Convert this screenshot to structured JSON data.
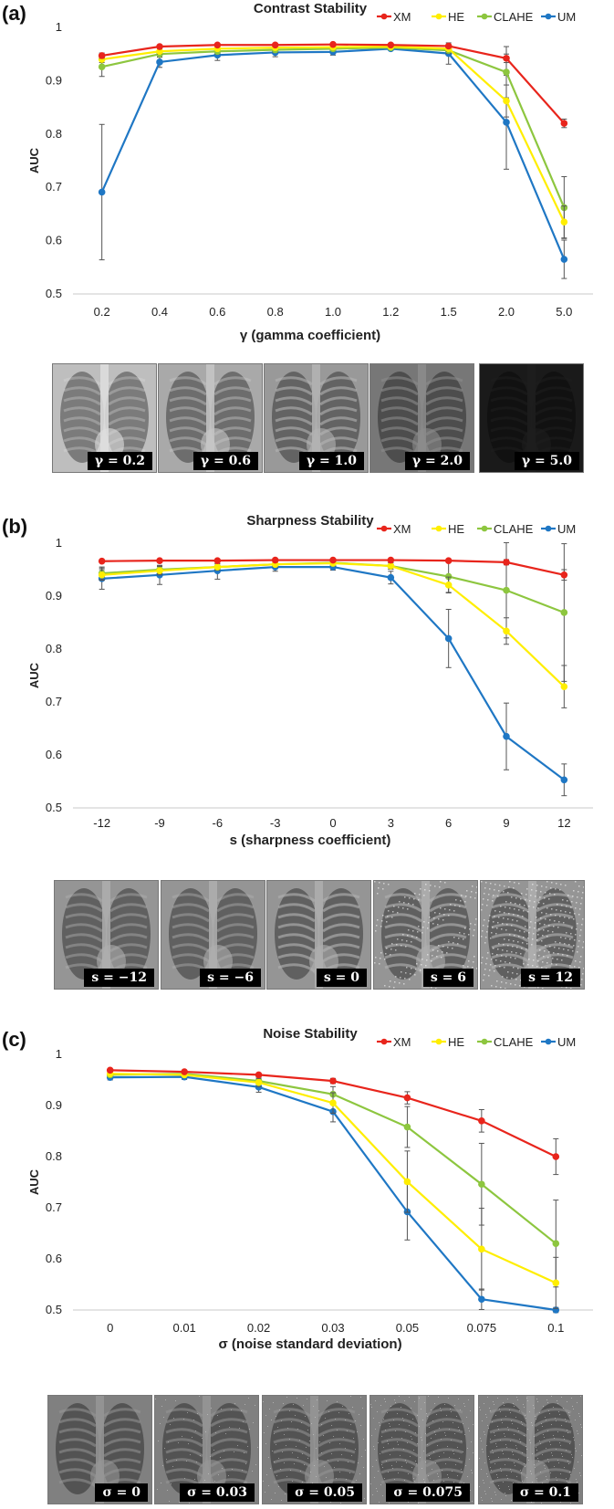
{
  "series_names": [
    "XM",
    "HE",
    "CLAHE",
    "UM"
  ],
  "series_colors": [
    "#e8251c",
    "#ffee00",
    "#8dc63f",
    "#1f77c4"
  ],
  "chart_data": [
    {
      "type": "line",
      "panel_label": "(a)",
      "title": "Contrast Stability",
      "xlabel": "γ (gamma coefficient)",
      "ylabel": "AUC",
      "categories": [
        "0.2",
        "0.4",
        "0.6",
        "0.8",
        "1.0",
        "1.2",
        "1.5",
        "2.0",
        "5.0"
      ],
      "ylim": [
        0.5,
        1.0
      ],
      "yticks": [
        "0.5",
        "0.6",
        "0.7",
        "0.8",
        "0.9",
        "1"
      ],
      "series": [
        {
          "name": "XM",
          "values": [
            0.947,
            0.964,
            0.967,
            0.967,
            0.968,
            0.967,
            0.965,
            0.942,
            0.82
          ],
          "errors": [
            0.005,
            0.004,
            0.003,
            0.003,
            0.003,
            0.003,
            0.003,
            0.008,
            0.008
          ]
        },
        {
          "name": "HE",
          "values": [
            0.94,
            0.955,
            0.96,
            0.962,
            0.963,
            0.964,
            0.96,
            0.862,
            0.635
          ],
          "errors": [
            0.006,
            0.005,
            0.004,
            0.004,
            0.004,
            0.004,
            0.005,
            0.03,
            0.03
          ]
        },
        {
          "name": "CLAHE",
          "values": [
            0.926,
            0.95,
            0.955,
            0.958,
            0.96,
            0.962,
            0.957,
            0.916,
            0.662
          ],
          "errors": [
            0.018,
            0.006,
            0.005,
            0.005,
            0.004,
            0.004,
            0.006,
            0.048,
            0.058
          ]
        },
        {
          "name": "UM",
          "values": [
            0.691,
            0.935,
            0.948,
            0.953,
            0.954,
            0.96,
            0.951,
            0.822,
            0.565
          ],
          "errors": [
            0.127,
            0.01,
            0.01,
            0.008,
            0.006,
            0.004,
            0.02,
            0.088,
            0.036
          ]
        }
      ]
    },
    {
      "type": "line",
      "panel_label": "(b)",
      "title": "Sharpness Stability",
      "xlabel": "s (sharpness coefficient)",
      "ylabel": "AUC",
      "categories": [
        "-12",
        "-9",
        "-6",
        "-3",
        "0",
        "3",
        "6",
        "9",
        "12"
      ],
      "ylim": [
        0.5,
        1.0
      ],
      "yticks": [
        "0.5",
        "0.6",
        "0.7",
        "0.8",
        "0.9",
        "1"
      ],
      "series": [
        {
          "name": "XM",
          "values": [
            0.966,
            0.967,
            0.967,
            0.968,
            0.968,
            0.968,
            0.967,
            0.964,
            0.94
          ],
          "errors": [
            0.003,
            0.003,
            0.003,
            0.003,
            0.003,
            0.003,
            0.003,
            0.005,
            0.01
          ]
        },
        {
          "name": "HE",
          "values": [
            0.94,
            0.948,
            0.955,
            0.96,
            0.962,
            0.957,
            0.921,
            0.834,
            0.729
          ],
          "errors": [
            0.01,
            0.008,
            0.006,
            0.005,
            0.005,
            0.006,
            0.015,
            0.025,
            0.04
          ]
        },
        {
          "name": "CLAHE",
          "values": [
            0.943,
            0.95,
            0.955,
            0.96,
            0.963,
            0.957,
            0.937,
            0.911,
            0.869
          ],
          "errors": [
            0.012,
            0.008,
            0.006,
            0.005,
            0.005,
            0.006,
            0.03,
            0.09,
            0.13
          ]
        },
        {
          "name": "UM",
          "values": [
            0.933,
            0.94,
            0.948,
            0.955,
            0.955,
            0.935,
            0.82,
            0.635,
            0.553
          ],
          "errors": [
            0.02,
            0.018,
            0.016,
            0.008,
            0.006,
            0.012,
            0.055,
            0.063,
            0.03
          ]
        }
      ]
    },
    {
      "type": "line",
      "panel_label": "(c)",
      "title": "Noise Stability",
      "xlabel": "σ (noise standard deviation)",
      "ylabel": "AUC",
      "categories": [
        "0",
        "0.01",
        "0.02",
        "0.03",
        "0.05",
        "0.075",
        "0.1"
      ],
      "ylim": [
        0.5,
        1.0
      ],
      "yticks": [
        "0.5",
        "0.6",
        "0.7",
        "0.8",
        "0.9",
        "1"
      ],
      "series": [
        {
          "name": "XM",
          "values": [
            0.969,
            0.966,
            0.96,
            0.948,
            0.915,
            0.87,
            0.8
          ],
          "errors": [
            0.003,
            0.003,
            0.004,
            0.005,
            0.012,
            0.022,
            0.035
          ]
        },
        {
          "name": "HE",
          "values": [
            0.962,
            0.96,
            0.945,
            0.905,
            0.751,
            0.619,
            0.553
          ],
          "errors": [
            0.004,
            0.004,
            0.008,
            0.02,
            0.06,
            0.08,
            0.05
          ]
        },
        {
          "name": "CLAHE",
          "values": [
            0.96,
            0.962,
            0.948,
            0.922,
            0.858,
            0.746,
            0.63
          ],
          "errors": [
            0.004,
            0.004,
            0.007,
            0.015,
            0.04,
            0.08,
            0.085
          ]
        },
        {
          "name": "UM",
          "values": [
            0.955,
            0.956,
            0.936,
            0.888,
            0.692,
            0.521,
            0.5
          ],
          "errors": [
            0.005,
            0.005,
            0.01,
            0.02,
            0.055,
            0.02,
            0.005
          ]
        }
      ]
    }
  ],
  "thumbnails": {
    "a": [
      {
        "caption": "γ = 0.2",
        "gamma": 0.2
      },
      {
        "caption": "γ = 0.6",
        "gamma": 0.6
      },
      {
        "caption": "γ = 1.0",
        "gamma": 1.0
      },
      {
        "caption": "γ = 2.0",
        "gamma": 2.0
      },
      {
        "caption": "γ = 5.0",
        "gamma": 5.0
      }
    ],
    "b": [
      {
        "caption": "s = −12",
        "sharpness": -12
      },
      {
        "caption": "s = −6",
        "sharpness": -6
      },
      {
        "caption": "s = 0",
        "sharpness": 0
      },
      {
        "caption": "s = 6",
        "sharpness": 6
      },
      {
        "caption": "s = 12",
        "sharpness": 12
      }
    ],
    "c": [
      {
        "caption": "σ = 0",
        "sigma": 0
      },
      {
        "caption": "σ = 0.03",
        "sigma": 0.03
      },
      {
        "caption": "σ = 0.05",
        "sigma": 0.05
      },
      {
        "caption": "σ = 0.075",
        "sigma": 0.075
      },
      {
        "caption": "σ = 0.1",
        "sigma": 0.1
      }
    ]
  }
}
